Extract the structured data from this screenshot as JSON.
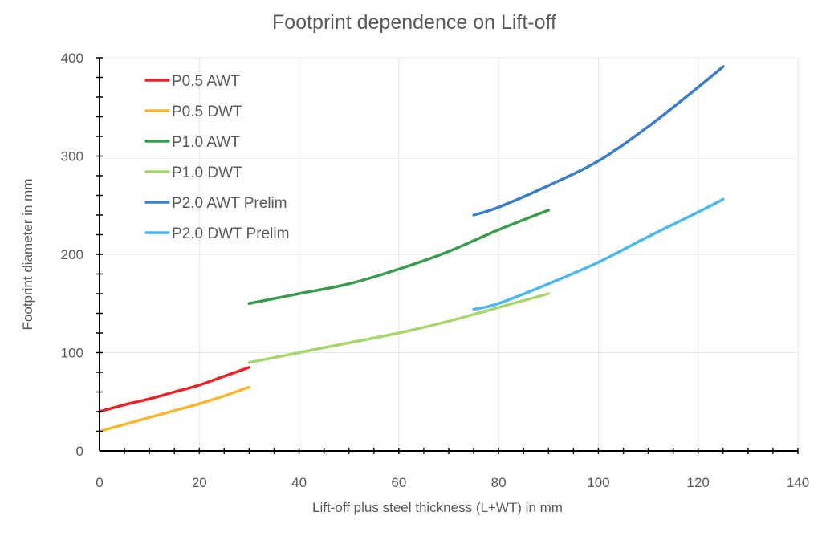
{
  "chart_data": {
    "type": "line",
    "title": "Footprint dependence on Lift-off",
    "xlabel": "Lift-off plus steel thickness (L+WT) in mm",
    "ylabel": "Footprint diameter in mm",
    "xlim": [
      0,
      140
    ],
    "ylim": [
      0,
      400
    ],
    "x_ticks": [
      0,
      20,
      40,
      60,
      80,
      100,
      120,
      140
    ],
    "y_ticks": [
      0,
      100,
      200,
      300,
      400
    ],
    "x_minor_step": 5,
    "y_minor_step": 20,
    "grid": true,
    "legend_position": "top-left",
    "series": [
      {
        "name": "P0.5 AWT",
        "color": "#e8262a",
        "x": [
          0,
          5,
          10,
          15,
          20,
          25,
          30
        ],
        "y": [
          40,
          47,
          53,
          60,
          67,
          76,
          85
        ]
      },
      {
        "name": "P0.5 DWT",
        "color": "#f5b731",
        "x": [
          0,
          5,
          10,
          15,
          20,
          25,
          30
        ],
        "y": [
          20,
          27,
          34,
          41,
          48,
          56,
          65
        ]
      },
      {
        "name": "P1.0 AWT",
        "color": "#3a9b4f",
        "x": [
          30,
          40,
          50,
          60,
          70,
          80,
          90
        ],
        "y": [
          150,
          160,
          170,
          185,
          203,
          225,
          245
        ]
      },
      {
        "name": "P1.0 DWT",
        "color": "#a8d56e",
        "x": [
          30,
          40,
          50,
          60,
          70,
          80,
          90
        ],
        "y": [
          90,
          100,
          110,
          120,
          132,
          146,
          160
        ]
      },
      {
        "name": "P2.0 AWT Prelim",
        "color": "#3a7dc9",
        "x": [
          75,
          80,
          90,
          100,
          110,
          120,
          125
        ],
        "y": [
          240,
          248,
          270,
          295,
          330,
          370,
          391
        ]
      },
      {
        "name": "P2.0 DWT Prelim",
        "color": "#4ab8ef",
        "x": [
          75,
          80,
          90,
          100,
          110,
          120,
          125
        ],
        "y": [
          144,
          150,
          170,
          192,
          218,
          243,
          256
        ]
      }
    ]
  }
}
